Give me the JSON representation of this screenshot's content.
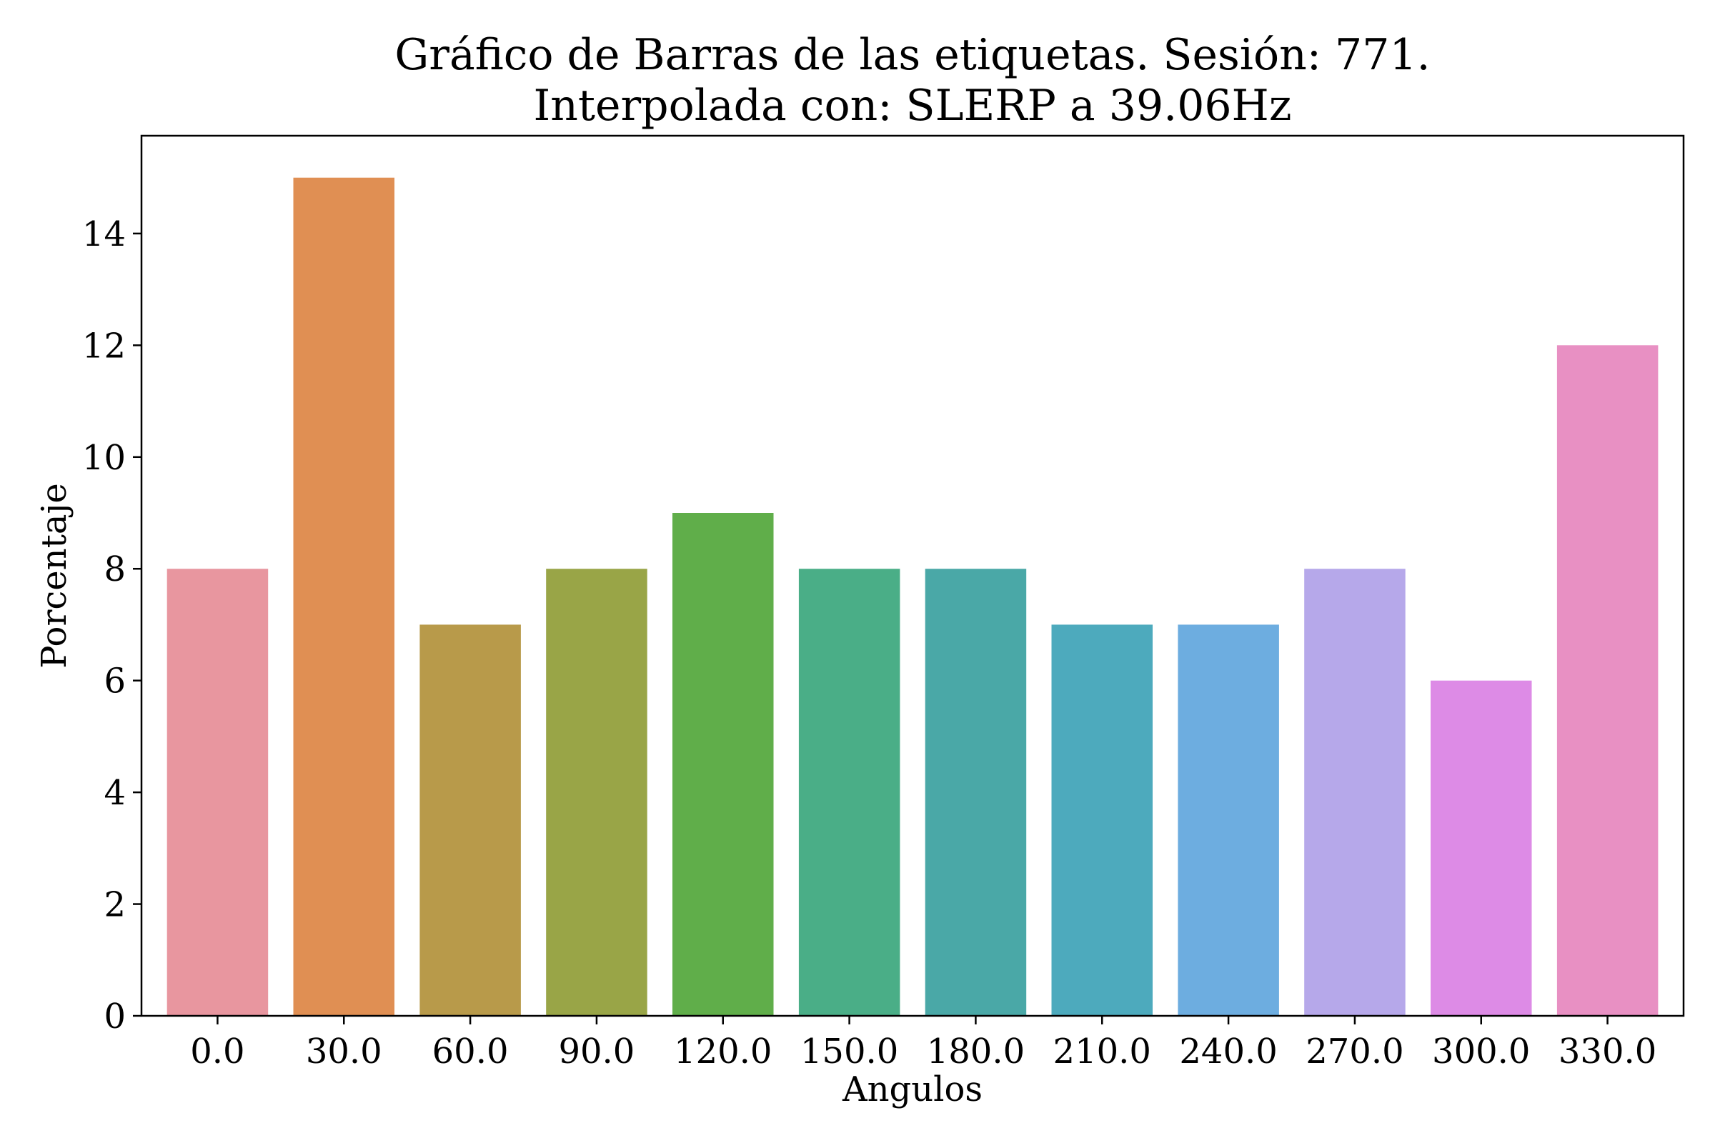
{
  "chart_data": {
    "type": "bar",
    "title": "Gráfico de Barras de las etiquetas. Sesión: 771.",
    "subtitle": "Interpolada con: SLERP a 39.06Hz",
    "xlabel": "Angulos",
    "ylabel": "Porcentaje",
    "categories": [
      "0.0",
      "30.0",
      "60.0",
      "90.0",
      "120.0",
      "150.0",
      "180.0",
      "210.0",
      "240.0",
      "270.0",
      "300.0",
      "330.0"
    ],
    "values": [
      8,
      15,
      7,
      8,
      9,
      8,
      8,
      7,
      7,
      8,
      6,
      12
    ],
    "colors": [
      "#E8969F",
      "#E08F53",
      "#B89A4A",
      "#99A547",
      "#60AE4A",
      "#4AAE87",
      "#4AA8A7",
      "#4DAABD",
      "#6DADE0",
      "#B6A8EA",
      "#DD8BE6",
      "#E890C3"
    ],
    "ylim": [
      0,
      15.75
    ],
    "yticks": [
      "0",
      "2",
      "4",
      "6",
      "8",
      "10",
      "12",
      "14"
    ],
    "grid": false,
    "legend": "none"
  }
}
